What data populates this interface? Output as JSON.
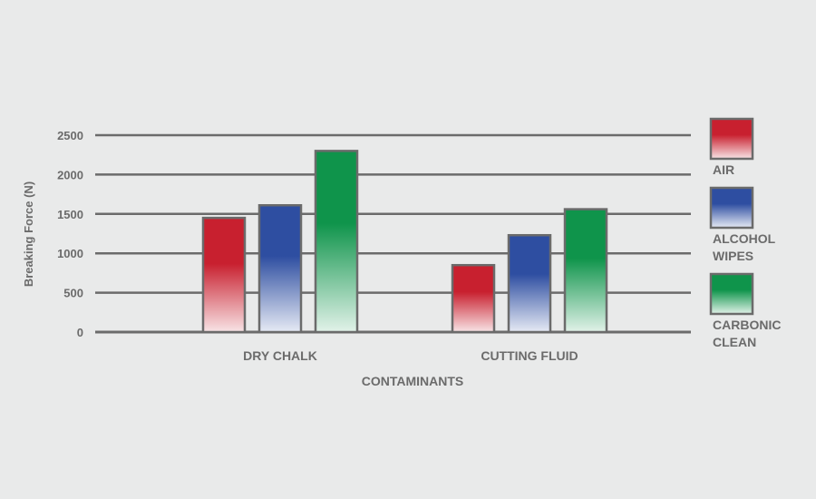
{
  "chart_data": {
    "type": "bar",
    "title": "",
    "xlabel": "CONTAMINANTS",
    "ylabel": "Breaking Force (N)",
    "ylim": [
      0,
      2500
    ],
    "yticks": [
      0,
      500,
      1000,
      1500,
      2000,
      2500
    ],
    "grid": true,
    "legend_position": "right",
    "categories": [
      "DRY CHALK",
      "CUTTING FLUID"
    ],
    "series": [
      {
        "name": "AIR",
        "values": [
          1450,
          850
        ],
        "color": "#c8202f"
      },
      {
        "name": "ALCOHOL WIPES",
        "values": [
          1610,
          1230
        ],
        "color": "#2e4ea1"
      },
      {
        "name": "CARBONIC CLEAN",
        "values": [
          2300,
          1560
        ],
        "color": "#0f944b"
      }
    ]
  }
}
